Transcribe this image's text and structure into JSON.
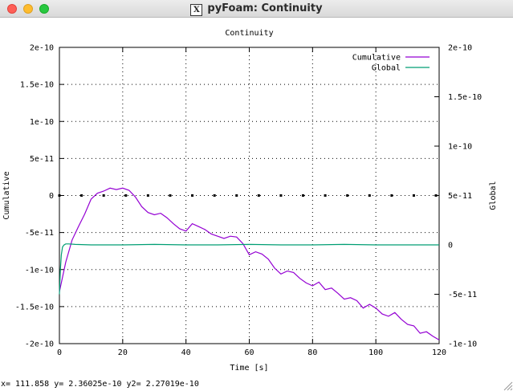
{
  "window": {
    "title": "pyFoam: Continuity",
    "icon": "x11-icon"
  },
  "status": {
    "readout": "x= 111.858 y= 2.36025e-10 y2= 2.27019e-10"
  },
  "chart_data": {
    "type": "line",
    "title": "Continuity",
    "xlabel": "Time [s]",
    "ylabel": "Cumulative",
    "y2label": "Global",
    "xlim": [
      0,
      120
    ],
    "ylim": [
      -2e-10,
      2e-10
    ],
    "y2lim": [
      -1e-10,
      2e-10
    ],
    "xticks": [
      "0",
      "20",
      "40",
      "60",
      "80",
      "100",
      "120"
    ],
    "yticks": [
      "-2e-10",
      "-1.5e-10",
      "-1e-10",
      "-5e-11",
      "0",
      "5e-11",
      "1e-10",
      "1.5e-10",
      "2e-10"
    ],
    "y2ticks": [
      "-1e-10",
      "-5e-11",
      "0",
      "5e-11",
      "1e-10",
      "1.5e-10",
      "2e-10"
    ],
    "grid": true,
    "legend_position": "top-right",
    "series": [
      {
        "name": "Cumulative",
        "axis": "y",
        "color": "#9400d3",
        "x": [
          0,
          2,
          4,
          6,
          8,
          10,
          12,
          14,
          16,
          18,
          20,
          22,
          24,
          26,
          28,
          30,
          32,
          34,
          36,
          38,
          40,
          42,
          44,
          46,
          48,
          50,
          52,
          54,
          56,
          58,
          60,
          62,
          64,
          66,
          68,
          70,
          72,
          74,
          76,
          78,
          80,
          82,
          84,
          86,
          88,
          90,
          92,
          94,
          96,
          98,
          100,
          102,
          104,
          106,
          108,
          110,
          112,
          114,
          116,
          118,
          120
        ],
        "y": [
          -1.3e-10,
          -9e-11,
          -6e-11,
          -4.2e-11,
          -2.5e-11,
          -5e-12,
          3e-12,
          6e-12,
          1e-11,
          8e-12,
          1e-11,
          7e-12,
          -2e-12,
          -1.5e-11,
          -2.3e-11,
          -2.6e-11,
          -2.4e-11,
          -3e-11,
          -3.8e-11,
          -4.5e-11,
          -4.8e-11,
          -3.8e-11,
          -4.2e-11,
          -4.6e-11,
          -5.2e-11,
          -5.5e-11,
          -5.8e-11,
          -5.5e-11,
          -5.6e-11,
          -6.5e-11,
          -8e-11,
          -7.6e-11,
          -7.9e-11,
          -8.6e-11,
          -9.8e-11,
          -1.06e-10,
          -1.02e-10,
          -1.04e-10,
          -1.12e-10,
          -1.18e-10,
          -1.22e-10,
          -1.17e-10,
          -1.27e-10,
          -1.25e-10,
          -1.32e-10,
          -1.4e-10,
          -1.38e-10,
          -1.42e-10,
          -1.52e-10,
          -1.47e-10,
          -1.52e-10,
          -1.6e-10,
          -1.63e-10,
          -1.58e-10,
          -1.67e-10,
          -1.74e-10,
          -1.76e-10,
          -1.86e-10,
          -1.84e-10,
          -1.9e-10,
          -1.95e-10
        ]
      },
      {
        "name": "Global",
        "axis": "y2",
        "color": "#009e73",
        "x": [
          0,
          0.3,
          0.6,
          1,
          1.5,
          2,
          3,
          5,
          10,
          20,
          30,
          40,
          50,
          60,
          70,
          80,
          90,
          100,
          110,
          120
        ],
        "y": [
          -5e-11,
          -2.5e-11,
          -1e-11,
          -2e-12,
          0,
          1e-12,
          1e-12,
          5e-13,
          0,
          0,
          5e-13,
          0,
          0,
          5e-13,
          0,
          0,
          5e-13,
          0,
          0,
          0
        ]
      }
    ],
    "markers": {
      "axis": "y",
      "y": 0,
      "x": [
        0,
        7,
        14,
        21,
        28,
        35,
        42,
        49,
        56,
        63,
        70,
        77,
        84,
        91,
        98,
        105,
        112,
        119
      ]
    }
  }
}
